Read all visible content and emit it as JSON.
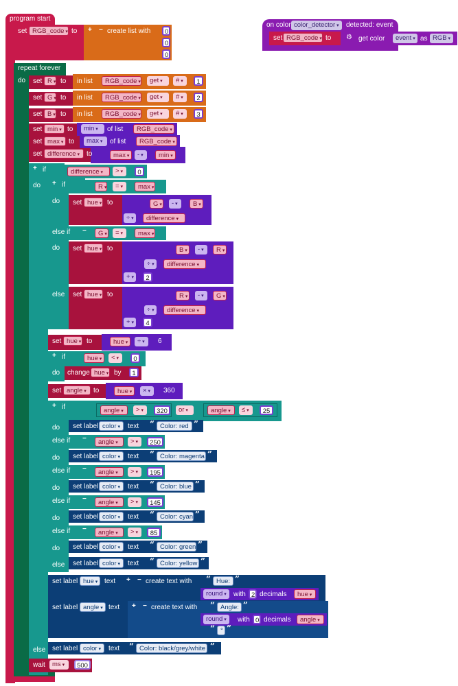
{
  "program_start": {
    "hat": "program start",
    "set_rgb": {
      "set": "set",
      "var": "RGB_code",
      "to": "to",
      "create": "create list with",
      "plus": "+",
      "minus": "−",
      "items": [
        "0",
        "0",
        "0"
      ]
    }
  },
  "event_block": {
    "on": "on color",
    "detector": "color_detector",
    "detected": "detected: event",
    "set": "set",
    "var": "RGB_code",
    "to": "to",
    "get_color": "get color",
    "event": "event",
    "as": "as",
    "mode": "RGB"
  },
  "repeat": {
    "label": "repeat forever",
    "do": "do"
  },
  "rgb_sets": [
    {
      "set": "set",
      "var": "R",
      "to": "to",
      "inlist": "in list",
      "list": "RGB_code",
      "get": "get",
      "hash": "#",
      "idx": "1"
    },
    {
      "set": "set",
      "var": "G",
      "to": "to",
      "inlist": "in list",
      "list": "RGB_code",
      "get": "get",
      "hash": "#",
      "idx": "2"
    },
    {
      "set": "set",
      "var": "B",
      "to": "to",
      "inlist": "in list",
      "list": "RGB_code",
      "get": "get",
      "hash": "#",
      "idx": "3"
    }
  ],
  "minmax": [
    {
      "set": "set",
      "var": "min",
      "to": "to",
      "fn": "min",
      "oflist": "of list",
      "list": "RGB_code"
    },
    {
      "set": "set",
      "var": "max",
      "to": "to",
      "fn": "max",
      "oflist": "of list",
      "list": "RGB_code"
    }
  ],
  "diff": {
    "set": "set",
    "var": "difference",
    "to": "to",
    "a": "max",
    "op": "-",
    "b": "min"
  },
  "outer_if": {
    "plus": "+",
    "if": "if",
    "var": "difference",
    "op": ">",
    "val": "0",
    "do": "do",
    "else": "else"
  },
  "hue_if": {
    "plus": "+",
    "if": "if",
    "do": "do",
    "elseif": "else if",
    "else": "else",
    "minus": "−",
    "c1": {
      "a": "R",
      "op": "=",
      "b": "max"
    },
    "s1": {
      "set": "set",
      "var": "hue",
      "to": "to",
      "a": "G",
      "op": "-",
      "b": "B",
      "op2": "÷",
      "d": "difference"
    },
    "c2": {
      "a": "G",
      "op": "=",
      "b": "max"
    },
    "s2": {
      "set": "set",
      "var": "hue",
      "to": "to",
      "a": "B",
      "op": "-",
      "b": "R",
      "op2": "÷",
      "d": "difference",
      "op3": "+",
      "n": "2"
    },
    "s3": {
      "set": "set",
      "var": "hue",
      "to": "to",
      "a": "R",
      "op": "-",
      "b": "G",
      "op2": "÷",
      "d": "difference",
      "op3": "+",
      "n": "4"
    }
  },
  "hue_div": {
    "set": "set",
    "var": "hue",
    "to": "to",
    "a": "hue",
    "op": "÷",
    "n": "6"
  },
  "neg_if": {
    "plus": "+",
    "if": "if",
    "var": "hue",
    "op": "<",
    "val": "0",
    "do": "do",
    "change": "change",
    "cvar": "hue",
    "by": "by",
    "n": "1"
  },
  "angle_set": {
    "set": "set",
    "var": "angle",
    "to": "to",
    "a": "hue",
    "op": "×",
    "n": "360"
  },
  "color_if": {
    "plus": "+",
    "if": "if",
    "do": "do",
    "elseif": "else if",
    "else": "else",
    "minus": "−",
    "cond0": {
      "a": "angle",
      "op": ">",
      "n": "320",
      "or": "or",
      "b": "angle",
      "op2": "≤",
      "m": "25"
    },
    "labels": {
      "set": "set label",
      "target": "color",
      "text": "text"
    },
    "branches": [
      {
        "cond": null,
        "text": "Color: red"
      },
      {
        "a": "angle",
        "op": ">",
        "n": "250",
        "text": "Color: magenta"
      },
      {
        "a": "angle",
        "op": ">",
        "n": "195",
        "text": "Color: blue"
      },
      {
        "a": "angle",
        "op": ">",
        "n": "145",
        "text": "Color: cyan"
      },
      {
        "a": "angle",
        "op": ">",
        "n": "85",
        "text": "Color: green"
      },
      {
        "text": "Color: yellow"
      }
    ]
  },
  "hue_label": {
    "set": "set label",
    "target": "hue",
    "text": "text",
    "create": "create text with",
    "plus": "+",
    "minus": "−",
    "s1": "Hue: ",
    "round": "round",
    "with": "with",
    "decimals": "decimals",
    "nd": "2",
    "var": "hue"
  },
  "angle_label": {
    "set": "set label",
    "target": "angle",
    "text": "text",
    "create": "create text with",
    "plus": "+",
    "minus": "−",
    "s1": "Angle: ",
    "round": "round",
    "with": "with",
    "decimals": "decimals",
    "nd": "0",
    "var": "angle",
    "deg": "°"
  },
  "else_label": {
    "else": "else",
    "set": "set label",
    "target": "color",
    "text": "text",
    "str": "Color: black/grey/white"
  },
  "wait": {
    "wait": "wait",
    "unit": "ms",
    "n": "500"
  },
  "colors": {
    "event": "#8a1bb0",
    "control": "#c8194b",
    "var": "#e0337a",
    "list": "#d96b19",
    "math": "#5e1dbd",
    "logic": "#17988e",
    "text": "#0c3e76",
    "loop": "#0a6b46"
  }
}
